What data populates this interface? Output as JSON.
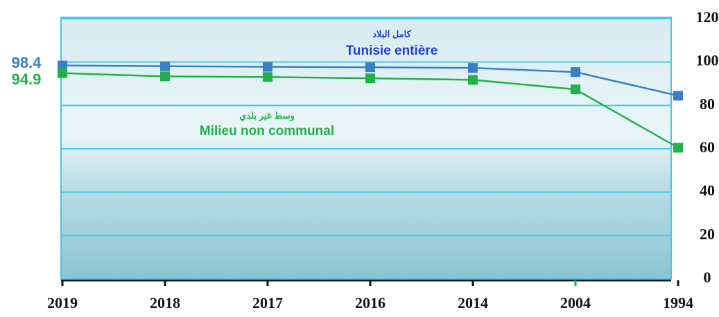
{
  "chart_data": {
    "type": "line",
    "categories": [
      "2019",
      "2018",
      "2017",
      "2016",
      "2014",
      "2004",
      "1994"
    ],
    "series": [
      {
        "name": "Tunisie entière",
        "name_ar": "كامل البلاد",
        "color": "#3a7fc4",
        "label_color": "#1f3fd6",
        "values": [
          98.4,
          98.1,
          97.8,
          97.6,
          97.3,
          95.4,
          84.5
        ]
      },
      {
        "name": "Milieu non communal",
        "name_ar": "وسط غير بلدي",
        "color": "#22b04b",
        "label_color": "#22b04b",
        "values": [
          94.9,
          93.4,
          93.1,
          92.5,
          91.8,
          87.4,
          60.5
        ]
      }
    ],
    "ylim": [
      0,
      120
    ],
    "yticks": [
      0,
      20,
      40,
      60,
      80,
      100,
      120
    ],
    "grid": true
  }
}
